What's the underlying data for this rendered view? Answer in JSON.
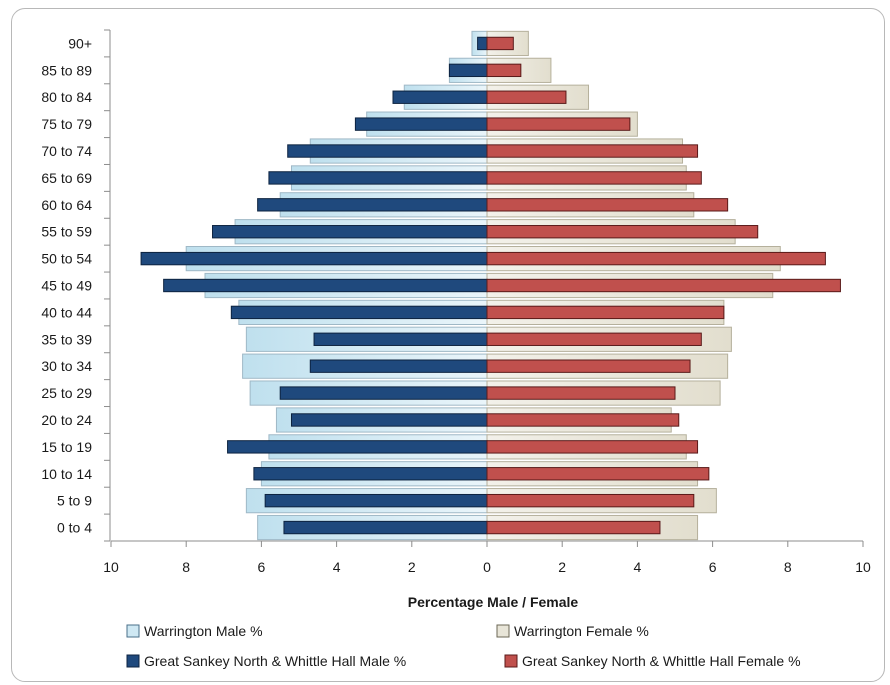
{
  "chart_data": {
    "type": "bar",
    "orientation": "horizontal",
    "subtype": "population-pyramid",
    "categories": [
      "0 to 4",
      "5 to 9",
      "10 to 14",
      "15 to 19",
      "20 to 24",
      "25 to 29",
      "30 to 34",
      "35 to 39",
      "40 to 44",
      "45 to 49",
      "50 to 54",
      "55 to 59",
      "60 to 64",
      "65 to 69",
      "70 to 74",
      "75 to 79",
      "80 to 84",
      "85 to 89",
      "90+"
    ],
    "xlabel": "Percentage Male / Female",
    "xlim": [
      -10,
      10
    ],
    "xticks": [
      -10,
      -8,
      -6,
      -4,
      -2,
      0,
      2,
      4,
      6,
      8,
      10
    ],
    "xtick_labels": [
      "10",
      "8",
      "6",
      "4",
      "2",
      "0",
      "2",
      "4",
      "6",
      "8",
      "10"
    ],
    "legend_position": "bottom",
    "grid": false,
    "series": [
      {
        "name": "Warrington Male %",
        "side": "left",
        "style": "wide",
        "color": "#cfe8f3",
        "values": [
          6.1,
          6.4,
          6.0,
          5.8,
          5.6,
          6.3,
          6.5,
          6.4,
          6.6,
          7.5,
          8.0,
          6.7,
          5.5,
          5.2,
          4.7,
          3.2,
          2.2,
          1.0,
          0.4
        ]
      },
      {
        "name": "Warrington Female %",
        "side": "right",
        "style": "wide",
        "color": "#e8e5d8",
        "values": [
          5.6,
          6.1,
          5.6,
          5.3,
          4.9,
          6.2,
          6.4,
          6.5,
          6.3,
          7.6,
          7.8,
          6.6,
          5.5,
          5.3,
          5.2,
          4.0,
          2.7,
          1.7,
          1.1
        ]
      },
      {
        "name": "Great Sankey North & Whittle Hall Male %",
        "side": "left",
        "style": "narrow",
        "color": "#1f497d",
        "values": [
          5.4,
          5.9,
          6.2,
          6.9,
          5.2,
          5.5,
          4.7,
          4.6,
          6.8,
          8.6,
          9.2,
          7.3,
          6.1,
          5.8,
          5.3,
          3.5,
          2.5,
          1.0,
          0.25
        ]
      },
      {
        "name": "Great Sankey North & Whittle Hall Female %",
        "side": "right",
        "style": "narrow",
        "color": "#c0504d",
        "values": [
          4.6,
          5.5,
          5.9,
          5.6,
          5.1,
          5.0,
          5.4,
          5.7,
          6.3,
          9.4,
          9.0,
          7.2,
          6.4,
          5.7,
          5.6,
          3.8,
          2.1,
          0.9,
          0.7
        ]
      }
    ]
  }
}
